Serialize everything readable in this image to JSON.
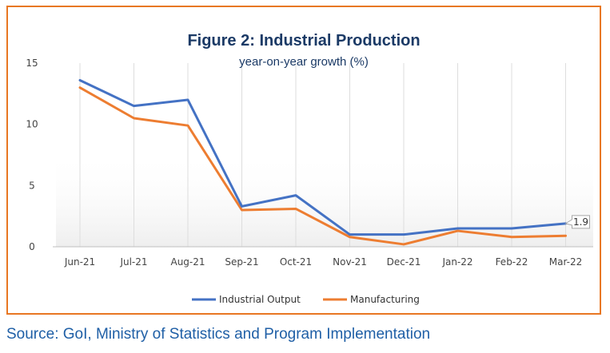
{
  "chart_data": {
    "type": "line",
    "title": "Figure 2: Industrial Production",
    "subtitle": "year-on-year growth (%)",
    "xlabel": "",
    "ylabel": "",
    "categories": [
      "Jun-21",
      "Jul-21",
      "Aug-21",
      "Sep-21",
      "Oct-21",
      "Nov-21",
      "Dec-21",
      "Jan-22",
      "Feb-22",
      "Mar-22"
    ],
    "ylim": [
      0,
      15
    ],
    "yticks": [
      "0",
      "5",
      "10",
      "15"
    ],
    "grid": "vertical",
    "legend": "bottom",
    "series": [
      {
        "name": "Industrial Output",
        "color": "#4472c4",
        "values": [
          13.6,
          11.5,
          12.0,
          3.3,
          4.2,
          1.0,
          1.0,
          1.5,
          1.5,
          1.9
        ]
      },
      {
        "name": "Manufacturing",
        "color": "#ed7d31",
        "values": [
          13.0,
          10.5,
          9.9,
          3.0,
          3.1,
          0.8,
          0.2,
          1.3,
          0.8,
          0.9
        ]
      }
    ],
    "data_label": {
      "series": 0,
      "index": 9,
      "text": "1.9"
    }
  },
  "source": "Source: GoI, Ministry of Statistics and Program Implementation",
  "colors": {
    "frame": "#e87722",
    "gridline": "#dddddd",
    "axis": "#bfbfbf",
    "source_text": "#1f5fa6"
  }
}
